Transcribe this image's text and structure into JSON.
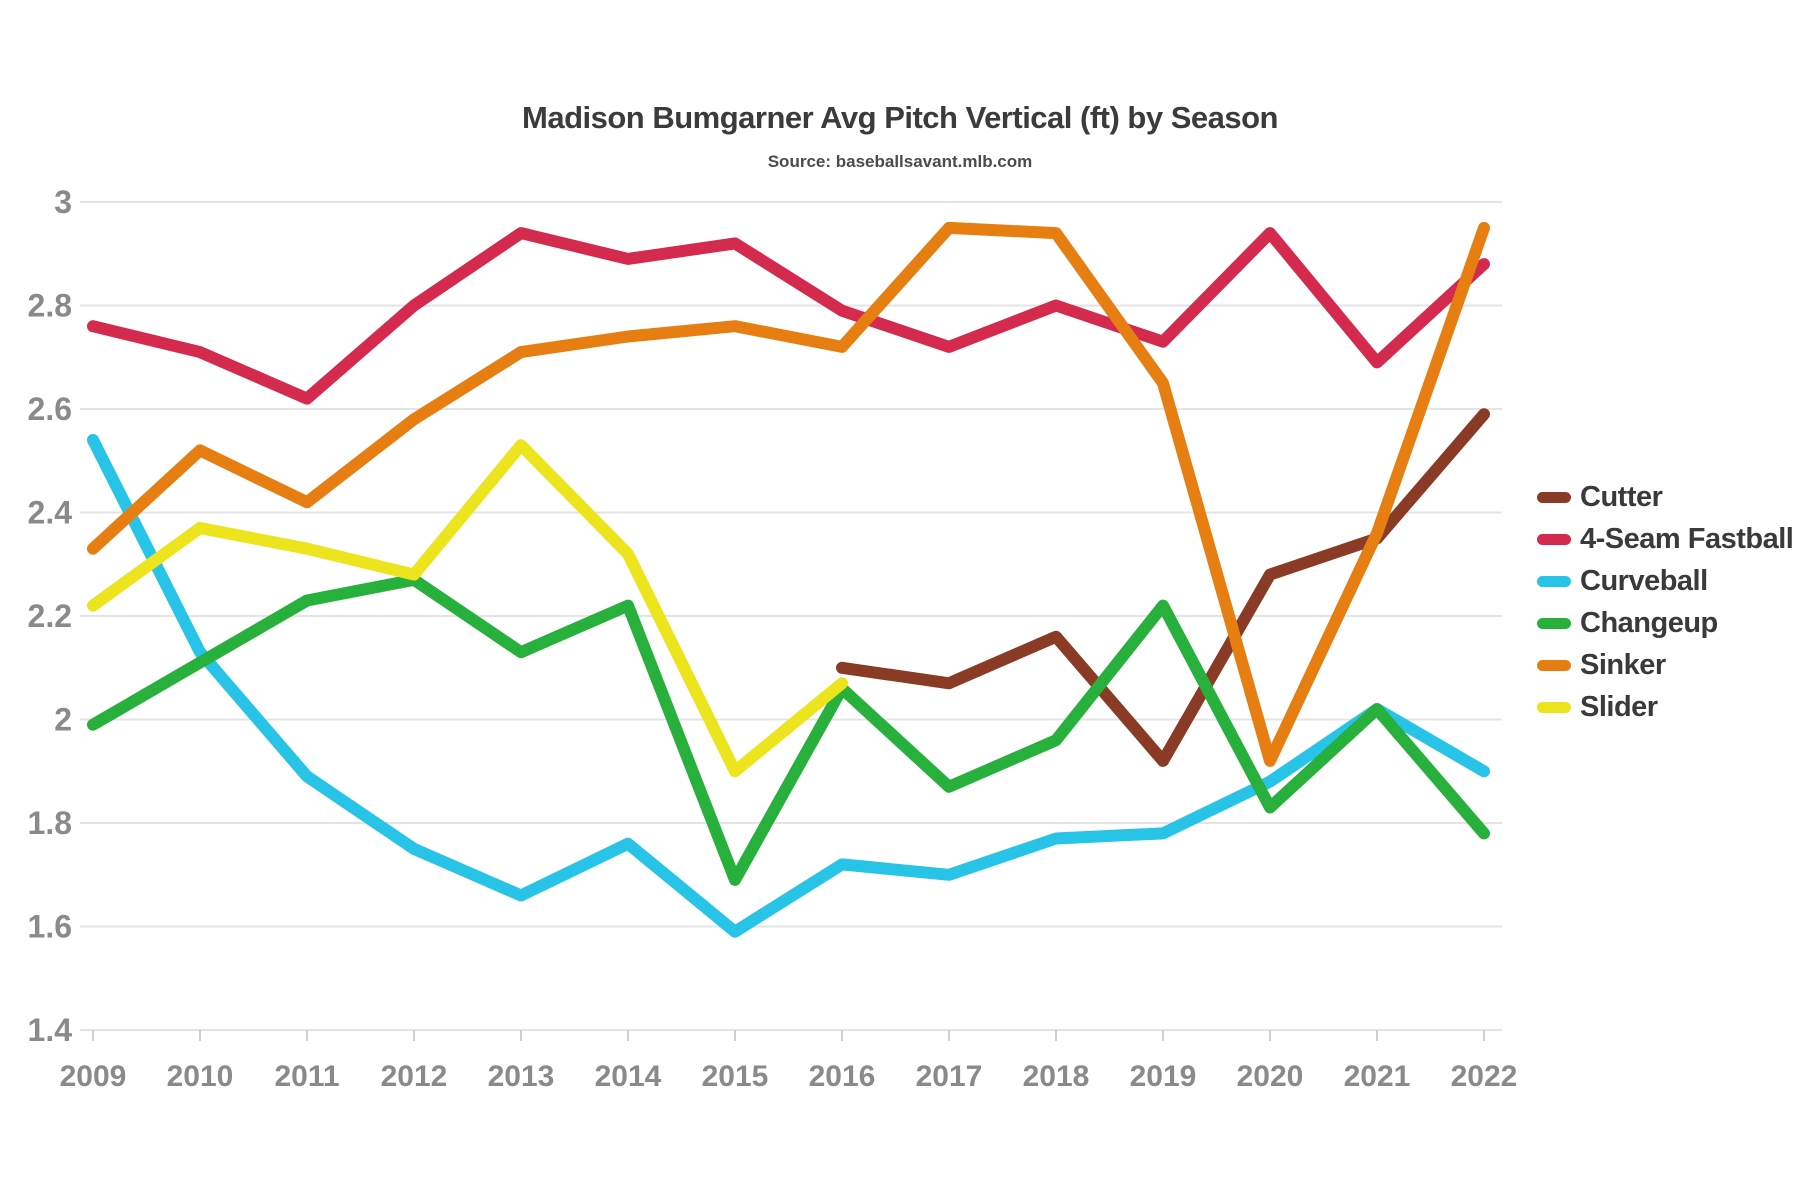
{
  "title": "Madison Bumgarner Avg Pitch Vertical (ft) by Season",
  "subtitle": "Source: baseballsavant.mlb.com",
  "chart_data": {
    "type": "line",
    "categories": [
      "2009",
      "2010",
      "2011",
      "2012",
      "2013",
      "2014",
      "2015",
      "2016",
      "2017",
      "2018",
      "2019",
      "2020",
      "2021",
      "2022"
    ],
    "series": [
      {
        "name": "Cutter",
        "color": "#8a3b25",
        "values": [
          null,
          null,
          null,
          null,
          null,
          null,
          null,
          2.1,
          2.07,
          2.16,
          1.92,
          2.28,
          2.35,
          2.59
        ]
      },
      {
        "name": "4-Seam Fastball",
        "color": "#d32a4e",
        "values": [
          2.76,
          2.71,
          2.62,
          2.8,
          2.94,
          2.89,
          2.92,
          2.79,
          2.72,
          2.8,
          2.73,
          2.94,
          2.69,
          2.88
        ]
      },
      {
        "name": "Curveball",
        "color": "#27c4e8",
        "values": [
          2.54,
          2.13,
          1.89,
          1.75,
          1.66,
          1.76,
          1.59,
          1.72,
          1.7,
          1.77,
          1.78,
          1.88,
          2.02,
          1.9
        ]
      },
      {
        "name": "Changeup",
        "color": "#27b13c",
        "values": [
          1.99,
          2.11,
          2.23,
          2.27,
          2.13,
          2.22,
          1.69,
          2.06,
          1.87,
          1.96,
          2.22,
          1.83,
          2.02,
          1.78
        ]
      },
      {
        "name": "Sinker",
        "color": "#e67e11",
        "values": [
          2.33,
          2.52,
          2.42,
          2.58,
          2.71,
          2.74,
          2.76,
          2.72,
          2.95,
          2.94,
          2.65,
          1.92,
          2.36,
          2.95
        ]
      },
      {
        "name": "Slider",
        "color": "#ece41c",
        "values": [
          2.22,
          2.37,
          2.33,
          2.28,
          2.53,
          2.32,
          1.9,
          2.07,
          null,
          null,
          null,
          null,
          null,
          null
        ]
      }
    ],
    "y_ticks": [
      3,
      2.8,
      2.6,
      2.4,
      2.2,
      2,
      1.8,
      1.6,
      1.4
    ],
    "y_tick_labels": [
      "3",
      "2.8",
      "2.6",
      "2.4",
      "2.2",
      "2",
      "1.8",
      "1.6",
      "1.4"
    ],
    "ylim": [
      1.4,
      3.0
    ],
    "xlabel": "",
    "ylabel": "",
    "grid": true,
    "legend_position": "right"
  }
}
